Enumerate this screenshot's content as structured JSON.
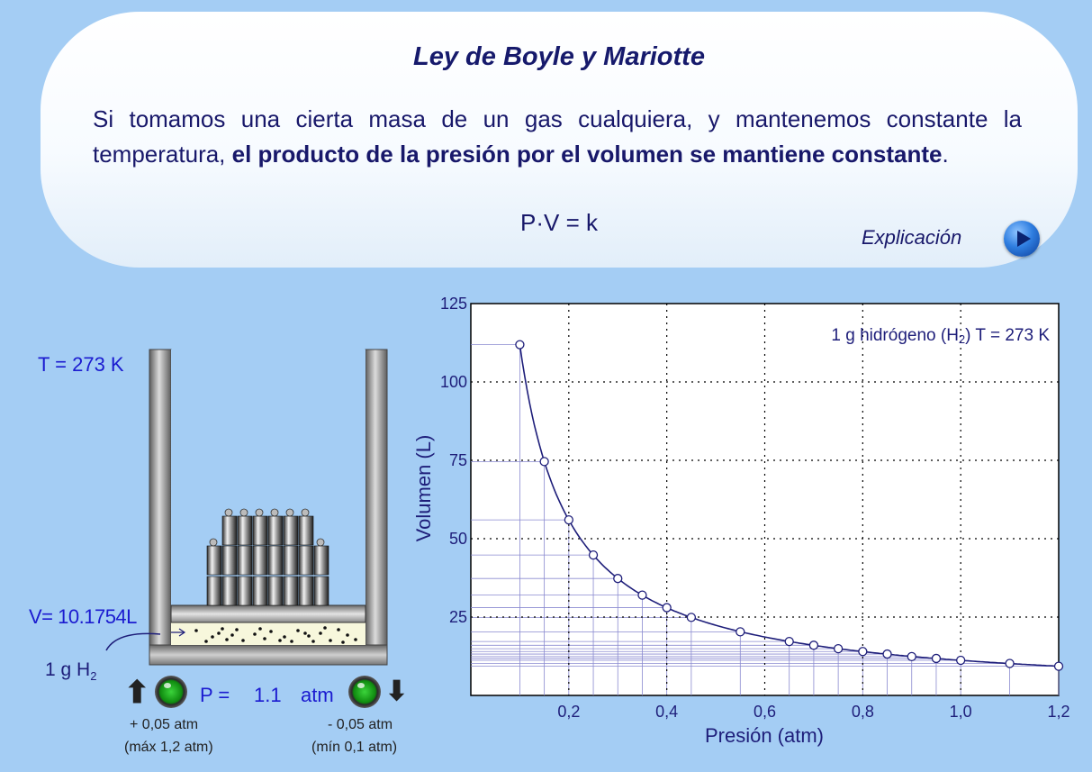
{
  "header": {
    "title": "Ley de Boyle y Mariotte",
    "desc_part1": "Si tomamos una cierta masa de un gas cualquiera, y mantenemos constante la temperatura, ",
    "desc_bold": "el producto de la presión por el volumen se mantiene constante",
    "desc_end": ".",
    "formula": "P·V = k",
    "explain_label": "Explicación",
    "explain_icon": "play-icon"
  },
  "apparatus": {
    "temperature": "T = 273 K",
    "volume": "V= 10.1754L",
    "gas": "1 g H",
    "gas_sub": "2",
    "pressure_label": "P =",
    "pressure_value": "1.1",
    "pressure_unit": "atm",
    "increase_label": "+ 0,05 atm",
    "increase_limit": "(máx 1,2 atm)",
    "decrease_label": "- 0,05 atm",
    "decrease_limit": "(mín 0,1 atm)",
    "increase_icon": "arrow-up-icon",
    "decrease_icon": "arrow-down-icon",
    "colors": {
      "led": "#1aa51a",
      "cylinder": "#8a8a8a",
      "gas": "#f7f7dc"
    }
  },
  "chart_data": {
    "type": "line",
    "annotation": "1 g hidrógeno (H2) T = 273 K",
    "xlabel": "Presión (atm)",
    "ylabel": "Volumen (L)",
    "xlim": [
      0,
      1.2
    ],
    "ylim": [
      0,
      125
    ],
    "xticks": [
      "0,2",
      "0,4",
      "0,6",
      "0,8",
      "1,0",
      "1,2"
    ],
    "yticks": [
      "25",
      "50",
      "75",
      "100",
      "125"
    ],
    "grid": true,
    "curve_k": 11.19,
    "points": [
      {
        "x": 0.1,
        "y": 111.9
      },
      {
        "x": 0.15,
        "y": 74.6
      },
      {
        "x": 0.2,
        "y": 56.0
      },
      {
        "x": 0.25,
        "y": 44.8
      },
      {
        "x": 0.3,
        "y": 37.3
      },
      {
        "x": 0.35,
        "y": 32.0
      },
      {
        "x": 0.4,
        "y": 28.0
      },
      {
        "x": 0.45,
        "y": 24.9
      },
      {
        "x": 0.55,
        "y": 20.3
      },
      {
        "x": 0.65,
        "y": 17.2
      },
      {
        "x": 0.7,
        "y": 16.0
      },
      {
        "x": 0.75,
        "y": 14.9
      },
      {
        "x": 0.8,
        "y": 14.0
      },
      {
        "x": 0.85,
        "y": 13.2
      },
      {
        "x": 0.9,
        "y": 12.4
      },
      {
        "x": 0.95,
        "y": 11.8
      },
      {
        "x": 1.0,
        "y": 11.2
      },
      {
        "x": 1.1,
        "y": 10.2
      },
      {
        "x": 1.2,
        "y": 9.3
      }
    ],
    "colors": {
      "curve": "#1e1e7a",
      "guides": "#8a8ad0"
    }
  }
}
